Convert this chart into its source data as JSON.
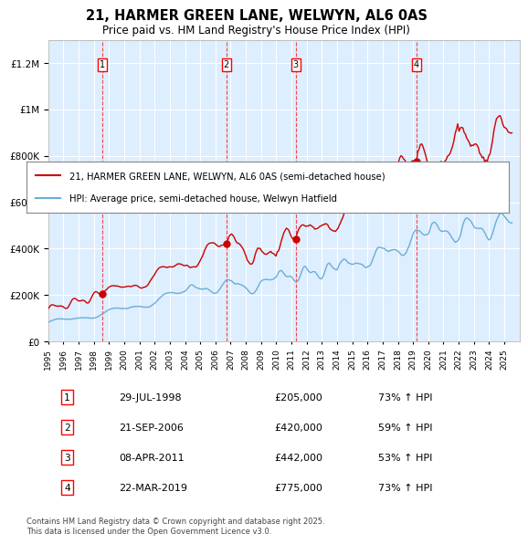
{
  "title": "21, HARMER GREEN LANE, WELWYN, AL6 0AS",
  "subtitle": "Price paid vs. HM Land Registry's House Price Index (HPI)",
  "legend_line1": "21, HARMER GREEN LANE, WELWYN, AL6 0AS (semi-detached house)",
  "legend_line2": "HPI: Average price, semi-detached house, Welwyn Hatfield",
  "footer_line1": "Contains HM Land Registry data © Crown copyright and database right 2025.",
  "footer_line2": "This data is licensed under the Open Government Licence v3.0.",
  "transactions": [
    {
      "num": 1,
      "date": "29-JUL-1998",
      "price": 205000,
      "hpi_pct": "73%",
      "year": 1998.57
    },
    {
      "num": 2,
      "date": "21-SEP-2006",
      "price": 420000,
      "hpi_pct": "59%",
      "year": 2006.72
    },
    {
      "num": 3,
      "date": "08-APR-2011",
      "price": 442000,
      "hpi_pct": "53%",
      "year": 2011.27
    },
    {
      "num": 4,
      "date": "22-MAR-2019",
      "price": 775000,
      "hpi_pct": "73%",
      "year": 2019.22
    }
  ],
  "hpi_color": "#6baed6",
  "price_color": "#cc0000",
  "background_color": "#ddeeff",
  "plot_bg": "#ddeeff",
  "ylim": [
    0,
    1300000
  ],
  "yticks": [
    0,
    200000,
    400000,
    600000,
    800000,
    1000000,
    1200000
  ],
  "ytick_labels": [
    "£0",
    "£200K",
    "£400K",
    "£600K",
    "£800K",
    "£1M",
    "£1.2M"
  ],
  "xstart": 1995,
  "xend": 2026
}
